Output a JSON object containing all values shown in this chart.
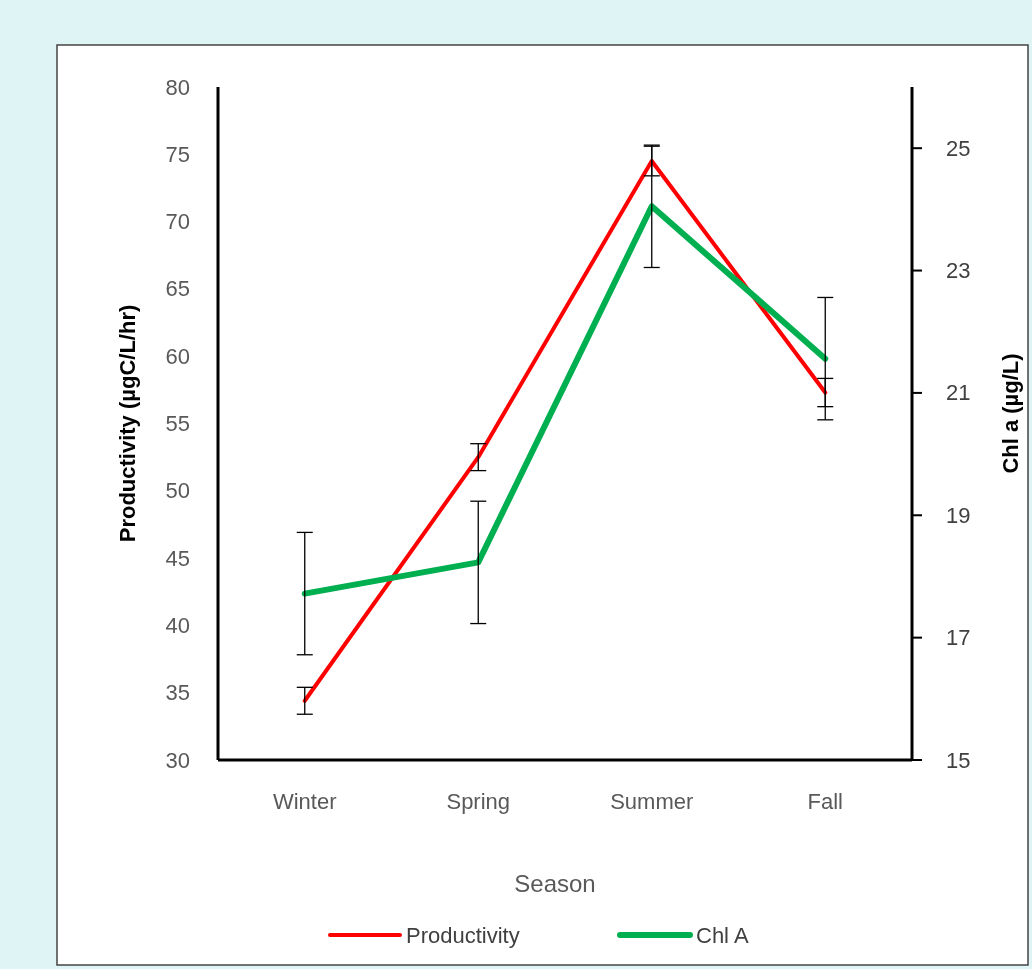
{
  "chart_data": {
    "type": "line",
    "xlabel": "Season",
    "ylabel": "Productivity (µgC/L/hr)",
    "y2label": "Chl a (µg/L)",
    "categories": [
      "Winter",
      "Spring",
      "Summer",
      "Fall"
    ],
    "series": [
      {
        "name": "Productivity",
        "color": "#ff0000",
        "values": [
          34.4,
          52.5,
          74.5,
          57.3
        ],
        "errors": [
          1,
          1,
          1.1,
          1.05
        ]
      },
      {
        "name": "Chl A",
        "color": "#00b050",
        "axis": "y2",
        "values": [
          17.72,
          18.23,
          24.05,
          21.56
        ],
        "errors": [
          1,
          1,
          1,
          1
        ]
      }
    ],
    "ylim": [
      30,
      80
    ],
    "yticks": [
      30,
      35,
      40,
      45,
      50,
      55,
      60,
      65,
      70,
      75,
      80
    ],
    "y2lim": [
      15,
      26
    ],
    "y2ticks": [
      15,
      17,
      19,
      21,
      23,
      25
    ],
    "grid": false,
    "legend": "bottom",
    "marker": "none",
    "line_style": "solid"
  }
}
